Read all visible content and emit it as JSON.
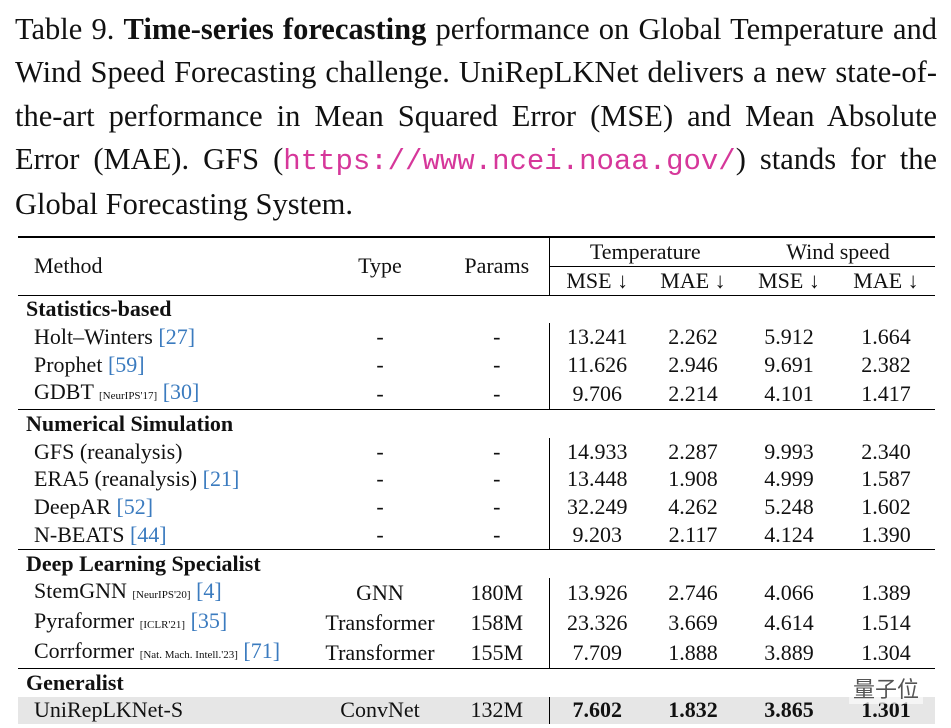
{
  "caption": {
    "label": "Table 9.",
    "bold": "Time-series forecasting",
    "text": " performance on Global Temperature and Wind Speed Forecasting challenge. UniRepLKNet delivers a new state-of-the-art performance in Mean Squared Error (MSE) and Mean Absolute Error (MAE). GFS (",
    "url": "https://www.ncei.noaa.gov/",
    "tail": ") stands for the Global Forecasting System."
  },
  "table": {
    "header": {
      "method": "Method",
      "type": "Type",
      "params": "Params",
      "groups": [
        "Temperature",
        "Wind speed"
      ],
      "metrics": [
        "MSE ↓",
        "MAE ↓",
        "MSE ↓",
        "MAE ↓"
      ]
    },
    "groups": [
      {
        "name": "Statistics-based",
        "rows": [
          {
            "method": "Holt–Winters",
            "ref": "[27]",
            "type": "-",
            "params": "-",
            "values": [
              "13.241",
              "2.262",
              "5.912",
              "1.664"
            ]
          },
          {
            "method": "Prophet",
            "ref": "[59]",
            "type": "-",
            "params": "-",
            "values": [
              "11.626",
              "2.946",
              "9.691",
              "2.382"
            ]
          },
          {
            "method": "GDBT",
            "venue": "[NeurIPS'17]",
            "ref": "[30]",
            "type": "-",
            "params": "-",
            "values": [
              "9.706",
              "2.214",
              "4.101",
              "1.417"
            ]
          }
        ]
      },
      {
        "name": "Numerical Simulation",
        "rows": [
          {
            "method": "GFS (reanalysis)",
            "type": "-",
            "params": "-",
            "values": [
              "14.933",
              "2.287",
              "9.993",
              "2.340"
            ]
          },
          {
            "method": "ERA5 (reanalysis)",
            "ref": "[21]",
            "type": "-",
            "params": "-",
            "values": [
              "13.448",
              "1.908",
              "4.999",
              "1.587"
            ]
          },
          {
            "method": "DeepAR",
            "ref": "[52]",
            "type": "-",
            "params": "-",
            "values": [
              "32.249",
              "4.262",
              "5.248",
              "1.602"
            ]
          },
          {
            "method": "N-BEATS",
            "ref": "[44]",
            "type": "-",
            "params": "-",
            "values": [
              "9.203",
              "2.117",
              "4.124",
              "1.390"
            ]
          }
        ]
      },
      {
        "name": "Deep Learning Specialist",
        "rows": [
          {
            "method": "StemGNN",
            "venue": "[NeurIPS'20]",
            "ref": "[4]",
            "type": "GNN",
            "params": "180M",
            "values": [
              "13.926",
              "2.746",
              "4.066",
              "1.389"
            ]
          },
          {
            "method": "Pyraformer",
            "venue": "[ICLR'21]",
            "ref": "[35]",
            "type": "Transformer",
            "params": "158M",
            "values": [
              "23.326",
              "3.669",
              "4.614",
              "1.514"
            ]
          },
          {
            "method": "Corrformer",
            "venue": "[Nat. Mach. Intell.'23]",
            "ref": "[71]",
            "type": "Transformer",
            "params": "155M",
            "values": [
              "7.709",
              "1.888",
              "3.889",
              "1.304"
            ]
          }
        ]
      },
      {
        "name": "Generalist",
        "rows": [
          {
            "method": "UniRepLKNet-S",
            "type": "ConvNet",
            "params": "132M",
            "values": [
              "7.602",
              "1.832",
              "3.865",
              "1.301"
            ],
            "highlight": true
          }
        ]
      }
    ]
  },
  "watermark": "量子位"
}
